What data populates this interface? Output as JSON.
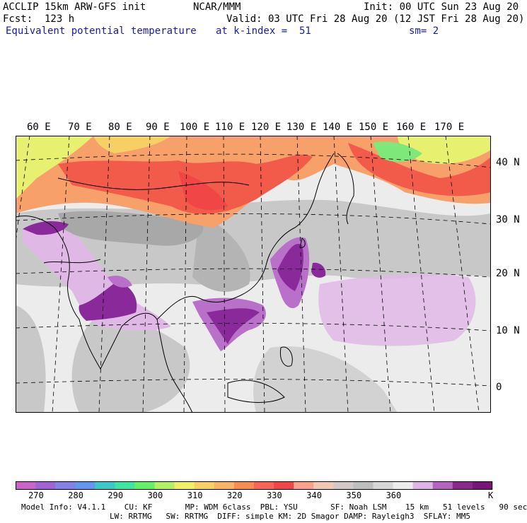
{
  "header": {
    "left1": "ACCLIP 15km ARW-GFS init",
    "center1": "NCAR/MMM",
    "right1": "Init: 00 UTC Sun 23 Aug 20",
    "left2": "Fcst:  123 h",
    "right2": "Valid: 03 UTC Fri 28 Aug 20 (12 JST Fri 28 Aug 20)",
    "field": "Equivalent potential temperature",
    "level": "at k-index =  51",
    "smooth": "sm= 2"
  },
  "map": {
    "lon_labels": [
      "60 E",
      "70 E",
      "80 E",
      "90 E",
      "100 E",
      "110 E",
      "120 E",
      "130 E",
      "140 E",
      "150 E",
      "160 E",
      "170 E"
    ],
    "lat_labels": [
      "40 N",
      "30 N",
      "20 N",
      "10 N",
      "0"
    ],
    "colors": {
      "land_gray": "#c8c8c8",
      "ocean_light": "#ececec",
      "dark_gray": "#a8a8a8",
      "hot_red": "#f25a4a",
      "orange": "#f7a06a",
      "yellow": "#e8f070",
      "green": "#7ee87a",
      "purple_light": "#e0b8e6",
      "purple_mid": "#b870c8",
      "purple_dark": "#8a2a9a"
    }
  },
  "colorbar": {
    "colors": [
      "#c864c8",
      "#a064d2",
      "#8282e6",
      "#6496f0",
      "#3cc8c8",
      "#3ce6a0",
      "#64f064",
      "#b4f064",
      "#f0f064",
      "#f7d064",
      "#f7b464",
      "#f78c50",
      "#f7645a",
      "#f04646",
      "#f7a08c",
      "#f0c8b4",
      "#d2c8c8",
      "#bebebe",
      "#d7d7d7",
      "#ececec",
      "#dcb4e6",
      "#b464be",
      "#8c288c",
      "#7a1478"
    ],
    "labels": [
      "270",
      "280",
      "290",
      "300",
      "310",
      "320",
      "330",
      "340",
      "350",
      "360"
    ],
    "unit": "K"
  },
  "footer": {
    "line1": "Model Info: V4.1.1    CU: KF       MP: WDM 6class  PBL: YSU       SF: Noah LSM    15 km   51 levels   90 sec",
    "line2": "LW: RRTMG   SW: RRTMG  DIFF: simple KM: 2D Smagor DAMP: Rayleigh3  SFLAY: MM5"
  }
}
